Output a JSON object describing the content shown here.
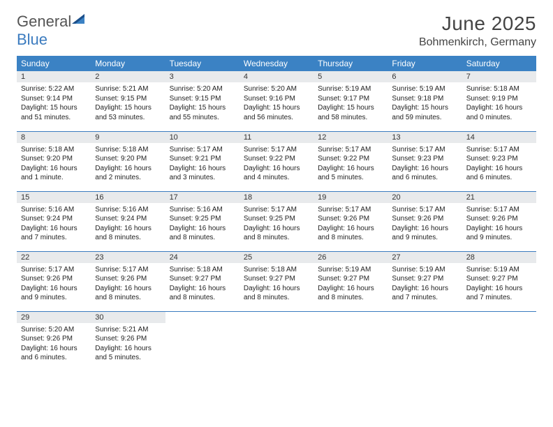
{
  "brand": {
    "general": "General",
    "blue": "Blue",
    "logo_color_dark": "#1b4f8a",
    "logo_color_light": "#3b82c4"
  },
  "header": {
    "month_title": "June 2025",
    "location": "Bohmenkirch, Germany"
  },
  "colors": {
    "header_bg": "#3b82c4",
    "header_text": "#ffffff",
    "daynum_bg": "#e8eaec",
    "rule": "#3b7bbf",
    "text": "#222222"
  },
  "weekday_labels": [
    "Sunday",
    "Monday",
    "Tuesday",
    "Wednesday",
    "Thursday",
    "Friday",
    "Saturday"
  ],
  "weeks": [
    [
      {
        "n": "1",
        "sr": "5:22 AM",
        "ss": "9:14 PM",
        "dl": "15 hours and 51 minutes."
      },
      {
        "n": "2",
        "sr": "5:21 AM",
        "ss": "9:15 PM",
        "dl": "15 hours and 53 minutes."
      },
      {
        "n": "3",
        "sr": "5:20 AM",
        "ss": "9:15 PM",
        "dl": "15 hours and 55 minutes."
      },
      {
        "n": "4",
        "sr": "5:20 AM",
        "ss": "9:16 PM",
        "dl": "15 hours and 56 minutes."
      },
      {
        "n": "5",
        "sr": "5:19 AM",
        "ss": "9:17 PM",
        "dl": "15 hours and 58 minutes."
      },
      {
        "n": "6",
        "sr": "5:19 AM",
        "ss": "9:18 PM",
        "dl": "15 hours and 59 minutes."
      },
      {
        "n": "7",
        "sr": "5:18 AM",
        "ss": "9:19 PM",
        "dl": "16 hours and 0 minutes."
      }
    ],
    [
      {
        "n": "8",
        "sr": "5:18 AM",
        "ss": "9:20 PM",
        "dl": "16 hours and 1 minute."
      },
      {
        "n": "9",
        "sr": "5:18 AM",
        "ss": "9:20 PM",
        "dl": "16 hours and 2 minutes."
      },
      {
        "n": "10",
        "sr": "5:17 AM",
        "ss": "9:21 PM",
        "dl": "16 hours and 3 minutes."
      },
      {
        "n": "11",
        "sr": "5:17 AM",
        "ss": "9:22 PM",
        "dl": "16 hours and 4 minutes."
      },
      {
        "n": "12",
        "sr": "5:17 AM",
        "ss": "9:22 PM",
        "dl": "16 hours and 5 minutes."
      },
      {
        "n": "13",
        "sr": "5:17 AM",
        "ss": "9:23 PM",
        "dl": "16 hours and 6 minutes."
      },
      {
        "n": "14",
        "sr": "5:17 AM",
        "ss": "9:23 PM",
        "dl": "16 hours and 6 minutes."
      }
    ],
    [
      {
        "n": "15",
        "sr": "5:16 AM",
        "ss": "9:24 PM",
        "dl": "16 hours and 7 minutes."
      },
      {
        "n": "16",
        "sr": "5:16 AM",
        "ss": "9:24 PM",
        "dl": "16 hours and 8 minutes."
      },
      {
        "n": "17",
        "sr": "5:16 AM",
        "ss": "9:25 PM",
        "dl": "16 hours and 8 minutes."
      },
      {
        "n": "18",
        "sr": "5:17 AM",
        "ss": "9:25 PM",
        "dl": "16 hours and 8 minutes."
      },
      {
        "n": "19",
        "sr": "5:17 AM",
        "ss": "9:26 PM",
        "dl": "16 hours and 8 minutes."
      },
      {
        "n": "20",
        "sr": "5:17 AM",
        "ss": "9:26 PM",
        "dl": "16 hours and 9 minutes."
      },
      {
        "n": "21",
        "sr": "5:17 AM",
        "ss": "9:26 PM",
        "dl": "16 hours and 9 minutes."
      }
    ],
    [
      {
        "n": "22",
        "sr": "5:17 AM",
        "ss": "9:26 PM",
        "dl": "16 hours and 9 minutes."
      },
      {
        "n": "23",
        "sr": "5:17 AM",
        "ss": "9:26 PM",
        "dl": "16 hours and 8 minutes."
      },
      {
        "n": "24",
        "sr": "5:18 AM",
        "ss": "9:27 PM",
        "dl": "16 hours and 8 minutes."
      },
      {
        "n": "25",
        "sr": "5:18 AM",
        "ss": "9:27 PM",
        "dl": "16 hours and 8 minutes."
      },
      {
        "n": "26",
        "sr": "5:19 AM",
        "ss": "9:27 PM",
        "dl": "16 hours and 8 minutes."
      },
      {
        "n": "27",
        "sr": "5:19 AM",
        "ss": "9:27 PM",
        "dl": "16 hours and 7 minutes."
      },
      {
        "n": "28",
        "sr": "5:19 AM",
        "ss": "9:27 PM",
        "dl": "16 hours and 7 minutes."
      }
    ],
    [
      {
        "n": "29",
        "sr": "5:20 AM",
        "ss": "9:26 PM",
        "dl": "16 hours and 6 minutes."
      },
      {
        "n": "30",
        "sr": "5:21 AM",
        "ss": "9:26 PM",
        "dl": "16 hours and 5 minutes."
      },
      null,
      null,
      null,
      null,
      null
    ]
  ],
  "labels": {
    "sunrise": "Sunrise: ",
    "sunset": "Sunset: ",
    "daylight": "Daylight: "
  }
}
